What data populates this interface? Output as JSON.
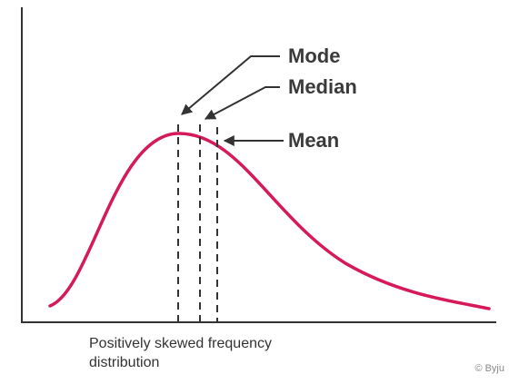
{
  "labels": {
    "mode": "Mode",
    "median": "Median",
    "mean": "Mean"
  },
  "caption": "Positively skewed frequency distribution",
  "credit": "© Byju"
}
